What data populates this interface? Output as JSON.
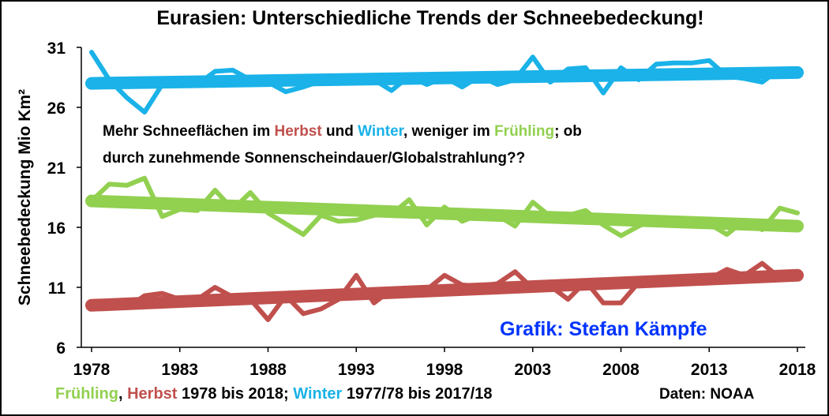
{
  "colors": {
    "winter": "#1ab2e8",
    "spring": "#92d050",
    "autumn": "#c0504d",
    "credit": "#0033ff",
    "text": "#000000"
  },
  "chart_data": {
    "type": "line",
    "title": "Eurasien: Unterschiedliche Trends der Schneebedeckung!",
    "ylabel": "Schneebedeckung Mio Km²",
    "xlim": [
      1978,
      2018
    ],
    "ylim": [
      6,
      31
    ],
    "xticks": [
      1978,
      1983,
      1988,
      1993,
      1998,
      2003,
      2008,
      2013,
      2018
    ],
    "yticks": [
      6,
      11,
      16,
      21,
      26,
      31
    ],
    "grid": false,
    "x": [
      1978,
      1979,
      1980,
      1981,
      1982,
      1983,
      1984,
      1985,
      1986,
      1987,
      1988,
      1989,
      1990,
      1991,
      1992,
      1993,
      1994,
      1995,
      1996,
      1997,
      1998,
      1999,
      2000,
      2001,
      2002,
      2003,
      2004,
      2005,
      2006,
      2007,
      2008,
      2009,
      2010,
      2011,
      2012,
      2013,
      2014,
      2015,
      2016,
      2017,
      2018
    ],
    "series": [
      {
        "name": "Winter",
        "color": "#1ab2e8",
        "values": [
          30.6,
          28.3,
          26.8,
          25.6,
          27.9,
          28.2,
          27.9,
          29.0,
          29.1,
          28.3,
          28.1,
          27.3,
          27.7,
          28.2,
          28.1,
          28.3,
          28.3,
          27.4,
          28.6,
          27.9,
          28.5,
          27.7,
          28.6,
          27.9,
          28.3,
          30.2,
          28.1,
          29.2,
          29.3,
          27.2,
          29.3,
          28.3,
          29.6,
          29.7,
          29.7,
          29.9,
          28.6,
          28.4,
          28.1,
          29.2,
          28.8
        ],
        "trend": [
          28.0,
          28.9
        ]
      },
      {
        "name": "Frühling",
        "color": "#92d050",
        "values": [
          18.2,
          19.6,
          19.5,
          20.1,
          16.9,
          17.5,
          17.4,
          19.1,
          17.5,
          18.9,
          17.2,
          16.3,
          15.4,
          17.0,
          16.5,
          16.6,
          17.0,
          17.1,
          18.3,
          16.2,
          17.7,
          16.5,
          17.1,
          17.0,
          16.1,
          18.1,
          16.9,
          17.0,
          17.4,
          16.2,
          15.3,
          16.1,
          16.8,
          16.3,
          16.5,
          16.3,
          15.4,
          16.6,
          15.8,
          17.6,
          17.2
        ],
        "trend": [
          18.2,
          16.1
        ]
      },
      {
        "name": "Herbst",
        "color": "#c0504d",
        "values": [
          9.5,
          9.3,
          9.3,
          10.3,
          10.5,
          10.0,
          10.0,
          11.0,
          10.2,
          10.0,
          8.3,
          10.3,
          8.8,
          9.2,
          10.0,
          12.0,
          9.7,
          10.8,
          10.7,
          10.8,
          12.0,
          11.2,
          11.1,
          11.3,
          12.3,
          10.9,
          11.1,
          10.0,
          11.5,
          9.7,
          9.7,
          11.4,
          11.2,
          11.4,
          11.5,
          11.7,
          12.5,
          12.0,
          13.0,
          11.8,
          12.0
        ],
        "trend": [
          9.5,
          12.0
        ]
      }
    ],
    "annotations": [
      {
        "id": "note_line1",
        "parts": [
          {
            "text": "Mehr Schneeflächen im ",
            "color": "#000000"
          },
          {
            "text": "Herbst",
            "color": "#c0504d"
          },
          {
            "text": " und ",
            "color": "#000000"
          },
          {
            "text": "Winter",
            "color": "#1ab2e8"
          },
          {
            "text": ", weniger im ",
            "color": "#000000"
          },
          {
            "text": "Frühling",
            "color": "#92d050"
          },
          {
            "text": "; ob",
            "color": "#000000"
          }
        ]
      },
      {
        "id": "note_line2",
        "parts": [
          {
            "text": "durch zunehmende Sonnenscheindauer/Globalstrahlung??",
            "color": "#000000"
          }
        ]
      }
    ],
    "credit": "Grafik: Stefan Kämpfe",
    "footer_parts": [
      {
        "text": "Frühling",
        "color": "#92d050"
      },
      {
        "text": ", ",
        "color": "#000000"
      },
      {
        "text": "Herbst",
        "color": "#c0504d"
      },
      {
        "text": " 1978 bis 2018; ",
        "color": "#000000"
      },
      {
        "text": "Winter",
        "color": "#1ab2e8"
      },
      {
        "text": " 1977/78 bis 2017/18",
        "color": "#000000"
      }
    ],
    "source": "Daten: NOAA"
  }
}
